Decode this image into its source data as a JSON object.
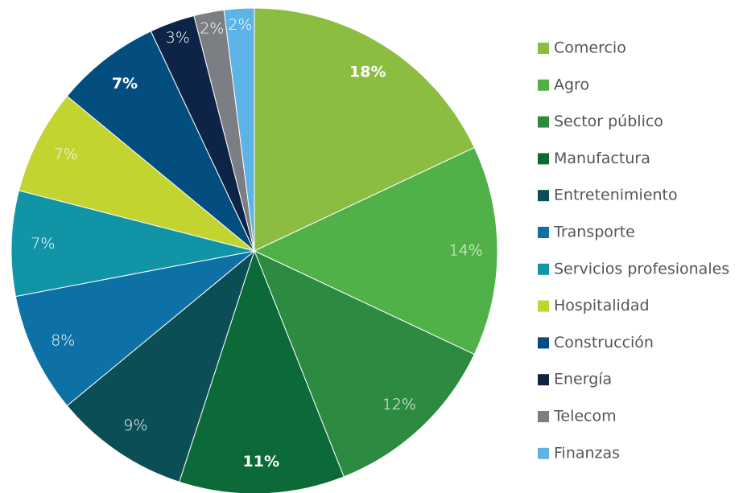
{
  "chart_data": {
    "type": "pie",
    "categories": [
      "Comercio",
      "Agro",
      "Sector público",
      "Manufactura",
      "Entretenimiento",
      "Transporte",
      "Servicios profesionales",
      "Hospitalidad",
      "Construcción",
      "Energía",
      "Telecom",
      "Finanzas"
    ],
    "values": [
      18,
      14,
      12,
      11,
      9,
      8,
      7,
      7,
      7,
      3,
      2,
      2
    ],
    "value_labels": [
      "18%",
      "14%",
      "12%",
      "11%",
      "9%",
      "8%",
      "7%",
      "7%",
      "7%",
      "3%",
      "2%",
      "2%"
    ],
    "label_bold": [
      true,
      false,
      false,
      true,
      false,
      false,
      false,
      false,
      true,
      false,
      false,
      false
    ],
    "colors": [
      "#8bbd41",
      "#50b148",
      "#2c8b40",
      "#0b6a37",
      "#0b4e55",
      "#0d71a6",
      "#1195a6",
      "#c3d32f",
      "#034e7f",
      "#0e2446",
      "#7b7e82",
      "#5db3e6"
    ],
    "legend": "right"
  }
}
